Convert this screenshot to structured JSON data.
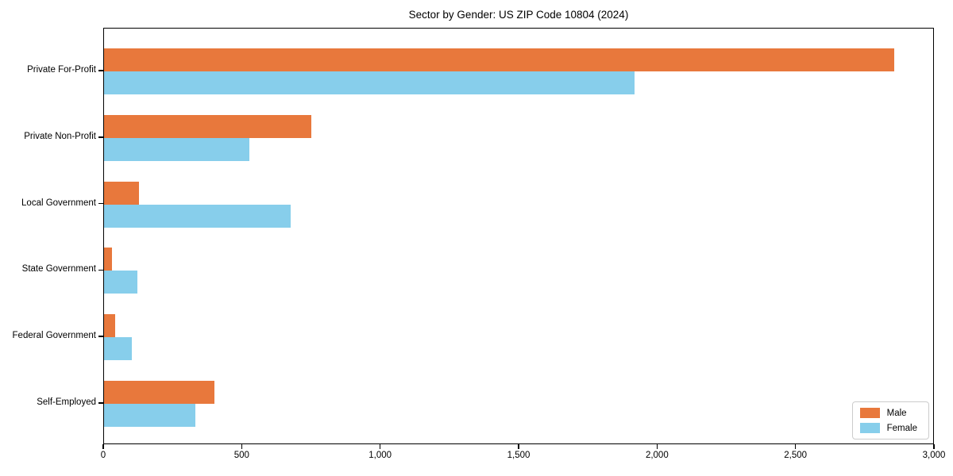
{
  "title": "Sector by Gender: US ZIP Code 10804 (2024)",
  "colors": {
    "male": "#e8783c",
    "female": "#87ceeb",
    "axis": "#000000",
    "legend_border": "#cccccc",
    "background": "#ffffff"
  },
  "legend": {
    "position": "lower-right",
    "items": [
      {
        "label": "Male",
        "color": "#e8783c"
      },
      {
        "label": "Female",
        "color": "#87ceeb"
      }
    ]
  },
  "chart_data": {
    "type": "bar",
    "orientation": "horizontal",
    "title": "Sector by Gender: US ZIP Code 10804 (2024)",
    "xlabel": "",
    "ylabel": "",
    "categories": [
      "Private For-Profit",
      "Private Non-Profit",
      "Local Government",
      "State Government",
      "Federal Government",
      "Self-Employed"
    ],
    "series": [
      {
        "name": "Male",
        "color": "#e8783c",
        "values": [
          2860,
          750,
          125,
          30,
          40,
          400
        ]
      },
      {
        "name": "Female",
        "color": "#87ceeb",
        "values": [
          1920,
          525,
          675,
          120,
          100,
          330
        ]
      }
    ],
    "xlim": [
      0,
      3000
    ],
    "xticks": [
      0,
      500,
      1000,
      1500,
      2000,
      2500,
      3000
    ],
    "xtick_labels": [
      "0",
      "500",
      "1,000",
      "1,500",
      "2,000",
      "2,500",
      "3,000"
    ],
    "grid": false,
    "legend_position": "lower right"
  }
}
